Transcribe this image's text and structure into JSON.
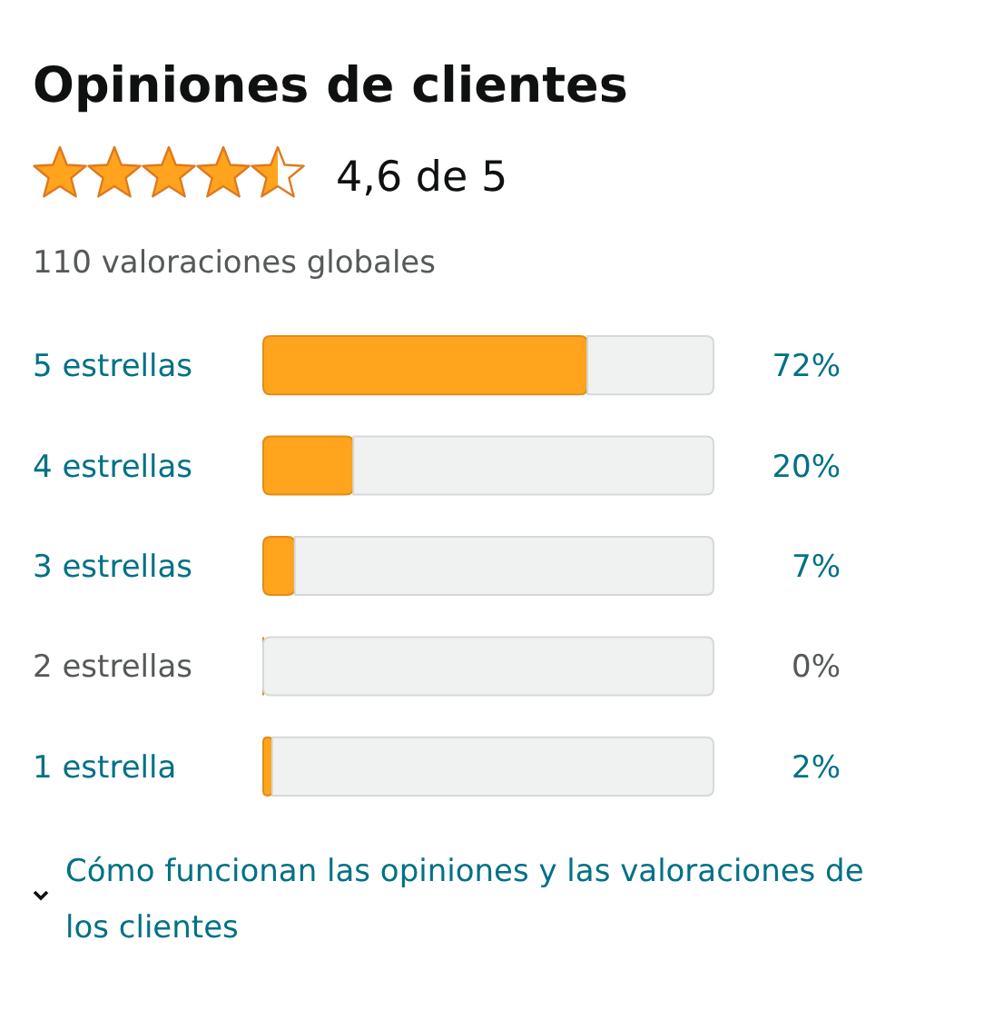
{
  "chart_data": {
    "type": "bar",
    "orientation": "horizontal",
    "stacked": true,
    "title": "Opiniones de clientes",
    "subtitle": "4,6 de 5",
    "annotations": [
      "110 valoraciones globales",
      "Cómo funcionan las opiniones y las valoraciones de los clientes"
    ],
    "categories": [
      "5 estrellas",
      "4 estrellas",
      "3 estrellas",
      "2 estrellas",
      "1 estrella"
    ],
    "series": [
      {
        "color": "#ffa41c",
        "values": [
          72,
          20,
          7,
          0,
          2
        ],
        "value_labels": [
          "72%",
          "20%",
          "7%",
          "0%",
          "2%"
        ]
      },
      {
        "color": "#f0f2f2",
        "values": [
          28,
          80,
          93,
          100,
          98
        ]
      }
    ],
    "xlim": [
      0,
      100
    ]
  }
}
